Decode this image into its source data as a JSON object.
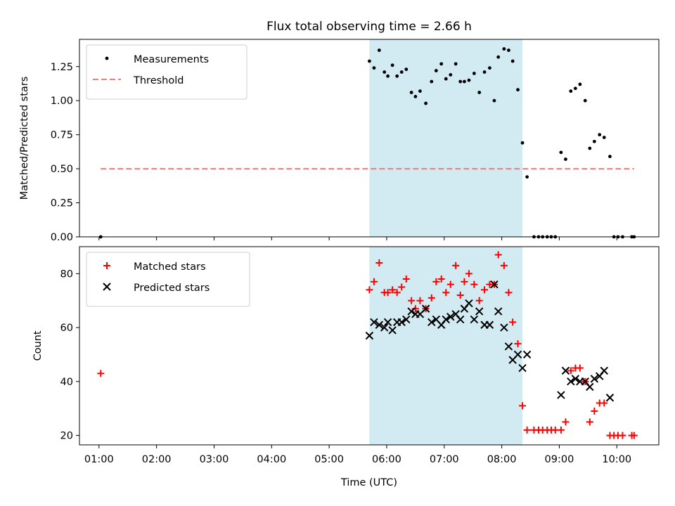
{
  "chart_data": {
    "title": "Flux total observing time = 2.66 h",
    "xlabel": "Time (UTC)",
    "x_unit": "hours UTC",
    "xlim": [
      0.66,
      10.73
    ],
    "xticks": [
      {
        "value": 1,
        "label": "01:00"
      },
      {
        "value": 2,
        "label": "02:00"
      },
      {
        "value": 3,
        "label": "03:00"
      },
      {
        "value": 4,
        "label": "04:00"
      },
      {
        "value": 5,
        "label": "05:00"
      },
      {
        "value": 6,
        "label": "06:00"
      },
      {
        "value": 7,
        "label": "07:00"
      },
      {
        "value": 8,
        "label": "08:00"
      },
      {
        "value": 9,
        "label": "09:00"
      },
      {
        "value": 10,
        "label": "10:00"
      }
    ],
    "highlight_span": {
      "x_start": 5.7,
      "x_end": 8.36,
      "color": "#add8e6"
    },
    "panels": [
      {
        "type": "scatter",
        "ylabel": "Matched/Predicted stars",
        "ylim": [
          0,
          1.45
        ],
        "yticks": [
          {
            "value": 0,
            "label": "0.00"
          },
          {
            "value": 0.25,
            "label": "0.25"
          },
          {
            "value": 0.5,
            "label": "0.50"
          },
          {
            "value": 0.75,
            "label": "0.75"
          },
          {
            "value": 1.0,
            "label": "1.00"
          },
          {
            "value": 1.25,
            "label": "1.25"
          }
        ],
        "legend_position": "top-left",
        "series": [
          {
            "name": "Measurements",
            "marker": "dot",
            "color": "#000000",
            "x": [
              1.03,
              5.7,
              5.78,
              5.87,
              5.96,
              6.02,
              6.1,
              6.18,
              6.26,
              6.34,
              6.43,
              6.5,
              6.58,
              6.68,
              6.78,
              6.86,
              6.95,
              7.03,
              7.11,
              7.2,
              7.28,
              7.35,
              7.43,
              7.52,
              7.61,
              7.7,
              7.79,
              7.87,
              7.94,
              8.04,
              8.12,
              8.19,
              8.28,
              8.36,
              8.44,
              8.56,
              8.64,
              8.71,
              8.79,
              8.86,
              8.93,
              9.03,
              9.11,
              9.2,
              9.28,
              9.36,
              9.45,
              9.53,
              9.61,
              9.7,
              9.78,
              9.88,
              9.95,
              10.02,
              10.1,
              10.26,
              10.3
            ],
            "y": [
              0.0,
              1.29,
              1.24,
              1.37,
              1.21,
              1.18,
              1.26,
              1.18,
              1.21,
              1.23,
              1.06,
              1.03,
              1.07,
              0.98,
              1.14,
              1.22,
              1.27,
              1.16,
              1.19,
              1.27,
              1.14,
              1.14,
              1.15,
              1.2,
              1.06,
              1.21,
              1.24,
              1.0,
              1.32,
              1.38,
              1.37,
              1.29,
              1.08,
              0.69,
              0.44,
              0.0,
              0.0,
              0.0,
              0.0,
              0.0,
              0.0,
              0.62,
              0.57,
              1.07,
              1.09,
              1.12,
              1.0,
              0.65,
              0.7,
              0.75,
              0.73,
              0.59,
              0.0,
              0.0,
              0.0,
              0.0,
              0.0
            ]
          },
          {
            "name": "Threshold",
            "marker": "dashed-line",
            "color": "#ff7777",
            "x": [
              1.03,
              10.3
            ],
            "y": [
              0.5,
              0.5
            ]
          }
        ]
      },
      {
        "type": "scatter",
        "ylabel": "Count",
        "ylim": [
          16.5,
          90
        ],
        "yticks": [
          {
            "value": 20,
            "label": "20"
          },
          {
            "value": 40,
            "label": "40"
          },
          {
            "value": 60,
            "label": "60"
          },
          {
            "value": 80,
            "label": "80"
          }
        ],
        "legend_position": "top-left",
        "series": [
          {
            "name": "Matched stars",
            "marker": "plus",
            "color": "#ff0000",
            "x": [
              1.03,
              5.7,
              5.78,
              5.87,
              5.96,
              6.02,
              6.1,
              6.18,
              6.26,
              6.34,
              6.43,
              6.5,
              6.58,
              6.68,
              6.78,
              6.86,
              6.95,
              7.03,
              7.11,
              7.2,
              7.28,
              7.35,
              7.43,
              7.52,
              7.61,
              7.7,
              7.79,
              7.87,
              7.94,
              8.04,
              8.12,
              8.19,
              8.28,
              8.36,
              8.44,
              8.56,
              8.64,
              8.71,
              8.79,
              8.86,
              8.93,
              9.03,
              9.11,
              9.2,
              9.28,
              9.36,
              9.45,
              9.53,
              9.61,
              9.7,
              9.78,
              9.88,
              9.95,
              10.02,
              10.1,
              10.26,
              10.3
            ],
            "y": [
              43,
              74,
              77,
              84,
              73,
              73,
              74,
              73,
              75,
              78,
              70,
              67,
              70,
              67,
              71,
              77,
              78,
              73,
              76,
              83,
              72,
              77,
              80,
              76,
              70,
              74,
              76,
              76,
              87,
              83,
              73,
              62,
              54,
              31,
              22,
              22,
              22,
              22,
              22,
              22,
              22,
              22,
              25,
              44,
              45,
              45,
              40,
              25,
              29,
              32,
              32,
              20,
              20,
              20,
              20,
              20,
              20
            ]
          },
          {
            "name": "Predicted stars",
            "marker": "x",
            "color": "#000000",
            "x": [
              5.7,
              5.78,
              5.87,
              5.96,
              6.02,
              6.1,
              6.18,
              6.26,
              6.34,
              6.43,
              6.5,
              6.58,
              6.68,
              6.78,
              6.86,
              6.95,
              7.03,
              7.11,
              7.2,
              7.28,
              7.35,
              7.43,
              7.52,
              7.61,
              7.7,
              7.79,
              7.87,
              7.94,
              8.04,
              8.12,
              8.19,
              8.28,
              8.36,
              8.44,
              9.03,
              9.11,
              9.2,
              9.28,
              9.36,
              9.45,
              9.53,
              9.61,
              9.7,
              9.78,
              9.88
            ],
            "y": [
              57,
              62,
              61,
              60,
              62,
              59,
              62,
              62,
              63,
              66,
              65,
              65,
              67,
              62,
              63,
              61,
              63,
              64,
              65,
              63,
              67,
              69,
              63,
              66,
              61,
              61,
              76,
              66,
              60,
              53,
              48,
              50,
              45,
              50,
              35,
              44,
              40,
              41,
              40,
              40,
              38,
              41,
              42,
              44,
              34
            ]
          }
        ]
      }
    ]
  }
}
